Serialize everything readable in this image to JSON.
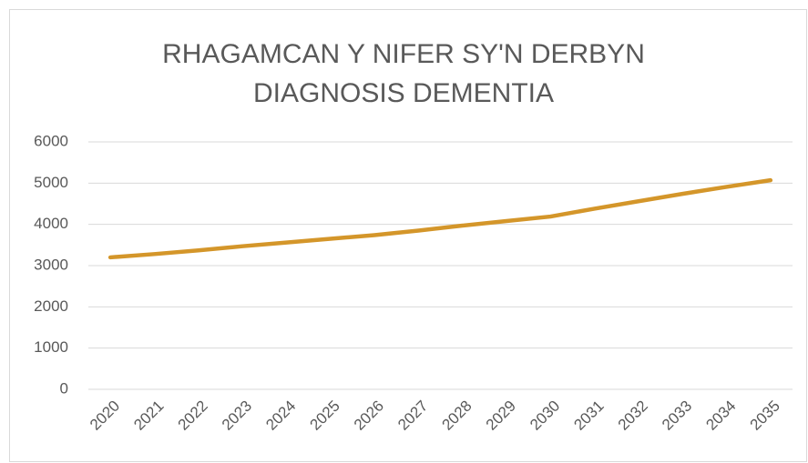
{
  "chart_data": {
    "type": "line",
    "title": "RHAGAMCAN Y NIFER SY'N DERBYN DIAGNOSIS DEMENTIA",
    "categories": [
      "2020",
      "2021",
      "2022",
      "2023",
      "2024",
      "2025",
      "2026",
      "2027",
      "2028",
      "2029",
      "2030",
      "2031",
      "2032",
      "2033",
      "2034",
      "2035"
    ],
    "series": [
      {
        "name": "Diagnosis",
        "color": "#d4962a",
        "values": [
          3200,
          3280,
          3370,
          3470,
          3560,
          3650,
          3740,
          3850,
          3970,
          4080,
          4190,
          4380,
          4560,
          4740,
          4910,
          5070
        ]
      }
    ],
    "ylim": [
      0,
      6000
    ],
    "yticks": [
      0,
      1000,
      2000,
      3000,
      4000,
      5000,
      6000
    ],
    "grid": true
  }
}
